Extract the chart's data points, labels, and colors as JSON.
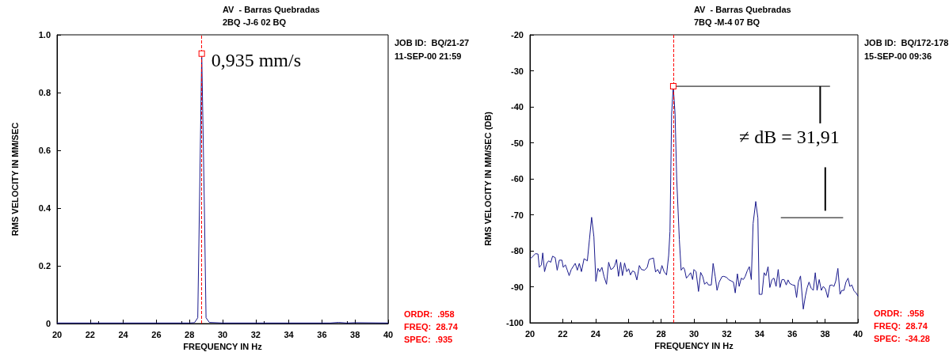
{
  "chart_data": [
    {
      "type": "line",
      "title": "AV  - Barras Quebradas",
      "subtitle": "2BQ -J-6 02 BQ",
      "xlabel": "FREQUENCY IN Hz",
      "ylabel": "RMS VELOCITY IN MM/SEC",
      "series": [
        {
          "color": "#1a1a8c",
          "x": [
            20,
            24,
            28,
            28.3,
            28.5,
            28.6,
            28.74,
            28.9,
            29.0,
            29.2,
            30,
            34,
            36.5,
            37,
            37.5,
            38,
            40
          ],
          "values": [
            0.002,
            0.002,
            0.002,
            0.003,
            0.02,
            0.4,
            0.935,
            0.4,
            0.02,
            0.004,
            0.002,
            0.002,
            0.002,
            0.004,
            0.002,
            0.003,
            0.002
          ]
        }
      ],
      "xlim": [
        20,
        40
      ],
      "xticks": [
        20,
        22,
        24,
        26,
        28,
        30,
        32,
        34,
        36,
        38,
        40
      ],
      "ylim": [
        0,
        1
      ],
      "yticks": [
        0,
        0.2,
        0.4,
        0.6,
        0.8,
        {
          "value": 1,
          "label": "1.0"
        }
      ],
      "ref_lines": [
        {
          "axis": "x",
          "value": 28.74,
          "color": "#ff0000",
          "line_style": "dashed"
        }
      ],
      "annotations": [
        "JOB ID:  BQ/21-27",
        "11-SEP-00 21:59",
        "ORDR:  .958",
        "FREQ:  28.74",
        "SPEC:  .935",
        {
          "text": "0,935 mm/s",
          "x": 28.74,
          "y": 0.935
        }
      ]
    },
    {
      "type": "line",
      "title": "AV  - Barras Quebradas",
      "subtitle": "7BQ -M-4 07 BQ",
      "xlabel": "FREQUENCY IN Hz",
      "ylabel": "RMS VELOCITY IN MM/SEC (DB)",
      "series": [
        {
          "color": "#1a1a8c",
          "x": [
            20.0,
            20.08,
            20.33,
            20.49,
            20.57,
            20.7,
            20.78,
            20.89,
            21.02,
            21.14,
            21.27,
            21.38,
            21.54,
            21.66,
            21.79,
            21.95,
            22.03,
            22.16,
            22.28,
            22.39,
            22.52,
            22.76,
            22.89,
            23.01,
            23.14,
            23.3,
            23.5,
            23.63,
            23.76,
            23.9,
            24.02,
            24.15,
            24.26,
            24.39,
            24.52,
            24.67,
            24.8,
            24.93,
            25.06,
            25.17,
            25.28,
            25.4,
            25.53,
            25.64,
            25.77,
            25.9,
            26.02,
            26.13,
            26.26,
            26.39,
            26.52,
            26.67,
            26.8,
            26.99,
            27.15,
            27.27,
            27.4,
            27.53,
            27.66,
            27.79,
            27.92,
            28.05,
            28.18,
            28.33,
            28.46,
            28.54,
            28.64,
            28.74,
            28.85,
            28.95,
            29.11,
            29.22,
            29.35,
            29.43,
            29.54,
            29.67,
            29.8,
            29.92,
            30.0,
            30.13,
            30.28,
            30.41,
            30.54,
            30.65,
            30.78,
            30.89,
            31.06,
            31.17,
            31.3,
            31.41,
            31.54,
            31.71,
            31.82,
            32.0,
            32.11,
            32.28,
            32.41,
            32.52,
            32.65,
            32.76,
            32.89,
            33.01,
            33.12,
            33.25,
            33.38,
            33.5,
            33.61,
            33.77,
            33.9,
            33.98,
            34.15,
            34.28,
            34.39,
            34.52,
            34.63,
            34.76,
            34.88,
            35.01,
            35.14,
            35.25,
            35.37,
            35.5,
            35.63,
            35.74,
            35.85,
            36.02,
            36.15,
            36.26,
            36.37,
            36.5,
            36.67,
            36.8,
            36.91,
            37.02,
            37.15,
            37.28,
            37.4,
            37.51,
            37.64,
            37.77,
            37.89,
            38.02,
            38.16,
            38.29,
            38.42,
            38.54,
            38.65,
            38.78,
            38.91,
            39.02,
            39.15,
            39.27,
            39.4,
            39.51,
            39.63,
            39.76,
            39.92,
            40.0
          ],
          "values": [
            -82.2,
            -82.0,
            -80.8,
            -80.9,
            -84.6,
            -83.9,
            -80.6,
            -85.8,
            -83.5,
            -82.8,
            -83.2,
            -81.5,
            -81.9,
            -85.4,
            -82.6,
            -82.6,
            -84.6,
            -83.9,
            -85.4,
            -86.9,
            -85.2,
            -83.5,
            -85.4,
            -83.5,
            -85.8,
            -82.2,
            -82.8,
            -76.8,
            -70.7,
            -76.1,
            -88.5,
            -84.9,
            -85.8,
            -84.6,
            -87.2,
            -89.3,
            -83.2,
            -85.2,
            -84.9,
            -84.1,
            -82.4,
            -87.1,
            -83.2,
            -86.9,
            -83.4,
            -85.8,
            -85.0,
            -86.7,
            -85.6,
            -85.9,
            -88.1,
            -84.1,
            -85.2,
            -85.4,
            -84.6,
            -82.4,
            -82.2,
            -82.0,
            -85.9,
            -85.2,
            -86.4,
            -84.1,
            -85.8,
            -86.7,
            -81.3,
            -74.6,
            -42,
            -34.28,
            -42,
            -60,
            -76.8,
            -85.4,
            -84.6,
            -85.2,
            -87.6,
            -86.9,
            -86.1,
            -88.0,
            -85.2,
            -85.8,
            -91.3,
            -86.0,
            -87.2,
            -89.3,
            -88.7,
            -89.5,
            -89.5,
            -83.5,
            -87.2,
            -91.0,
            -88.7,
            -87.2,
            -87.1,
            -87.4,
            -88.0,
            -88.4,
            -88.7,
            -91.7,
            -86.4,
            -89.9,
            -87.6,
            -88.0,
            -87.2,
            -85.6,
            -84.4,
            -88.0,
            -72.4,
            -66.3,
            -70.9,
            -92.1,
            -92.1,
            -86.1,
            -86.9,
            -84.4,
            -90.2,
            -88.0,
            -87.6,
            -89.9,
            -85.2,
            -90.2,
            -88.0,
            -88.0,
            -89.5,
            -88.1,
            -89.1,
            -89.5,
            -89.6,
            -93.0,
            -88.7,
            -87.0,
            -96.2,
            -92.5,
            -90.2,
            -88.7,
            -90.4,
            -91.0,
            -86.1,
            -91.0,
            -88.0,
            -91.0,
            -89.9,
            -90.6,
            -93.0,
            -89.6,
            -89.5,
            -89.9,
            -88.4,
            -84.9,
            -92.1,
            -91.0,
            -91.0,
            -88.7,
            -87.6,
            -89.9,
            -89.5,
            -91.1,
            -91.9,
            -92.6
          ]
        },
        {
          "color": "#000000",
          "x": [
            28.9,
            38.3
          ],
          "values": [
            -34.3,
            -34.3
          ]
        },
        {
          "color": "#000000",
          "x": [
            35.3,
            39.1
          ],
          "values": [
            -70.8,
            -70.8
          ]
        }
      ],
      "xlim": [
        20,
        40
      ],
      "xticks": [
        20,
        22,
        24,
        26,
        28,
        30,
        32,
        34,
        36,
        38,
        40
      ],
      "ylim": [
        -100,
        -20
      ],
      "yticks": [
        -100,
        -90,
        -80,
        -70,
        -60,
        -50,
        -40,
        -30,
        -20
      ],
      "ref_lines": [
        {
          "axis": "x",
          "value": 28.74,
          "color": "#ff0000",
          "line_style": "dashed"
        }
      ],
      "annotations": [
        "JOB ID:  BQ/172-178",
        "15-SEP-00 09:36",
        "ORDR:  .958",
        "FREQ:  28.74",
        "SPEC:  -34.28",
        {
          "text": "≠ dB = 31,91",
          "x": 37.7,
          "y": -34.3
        }
      ]
    }
  ]
}
